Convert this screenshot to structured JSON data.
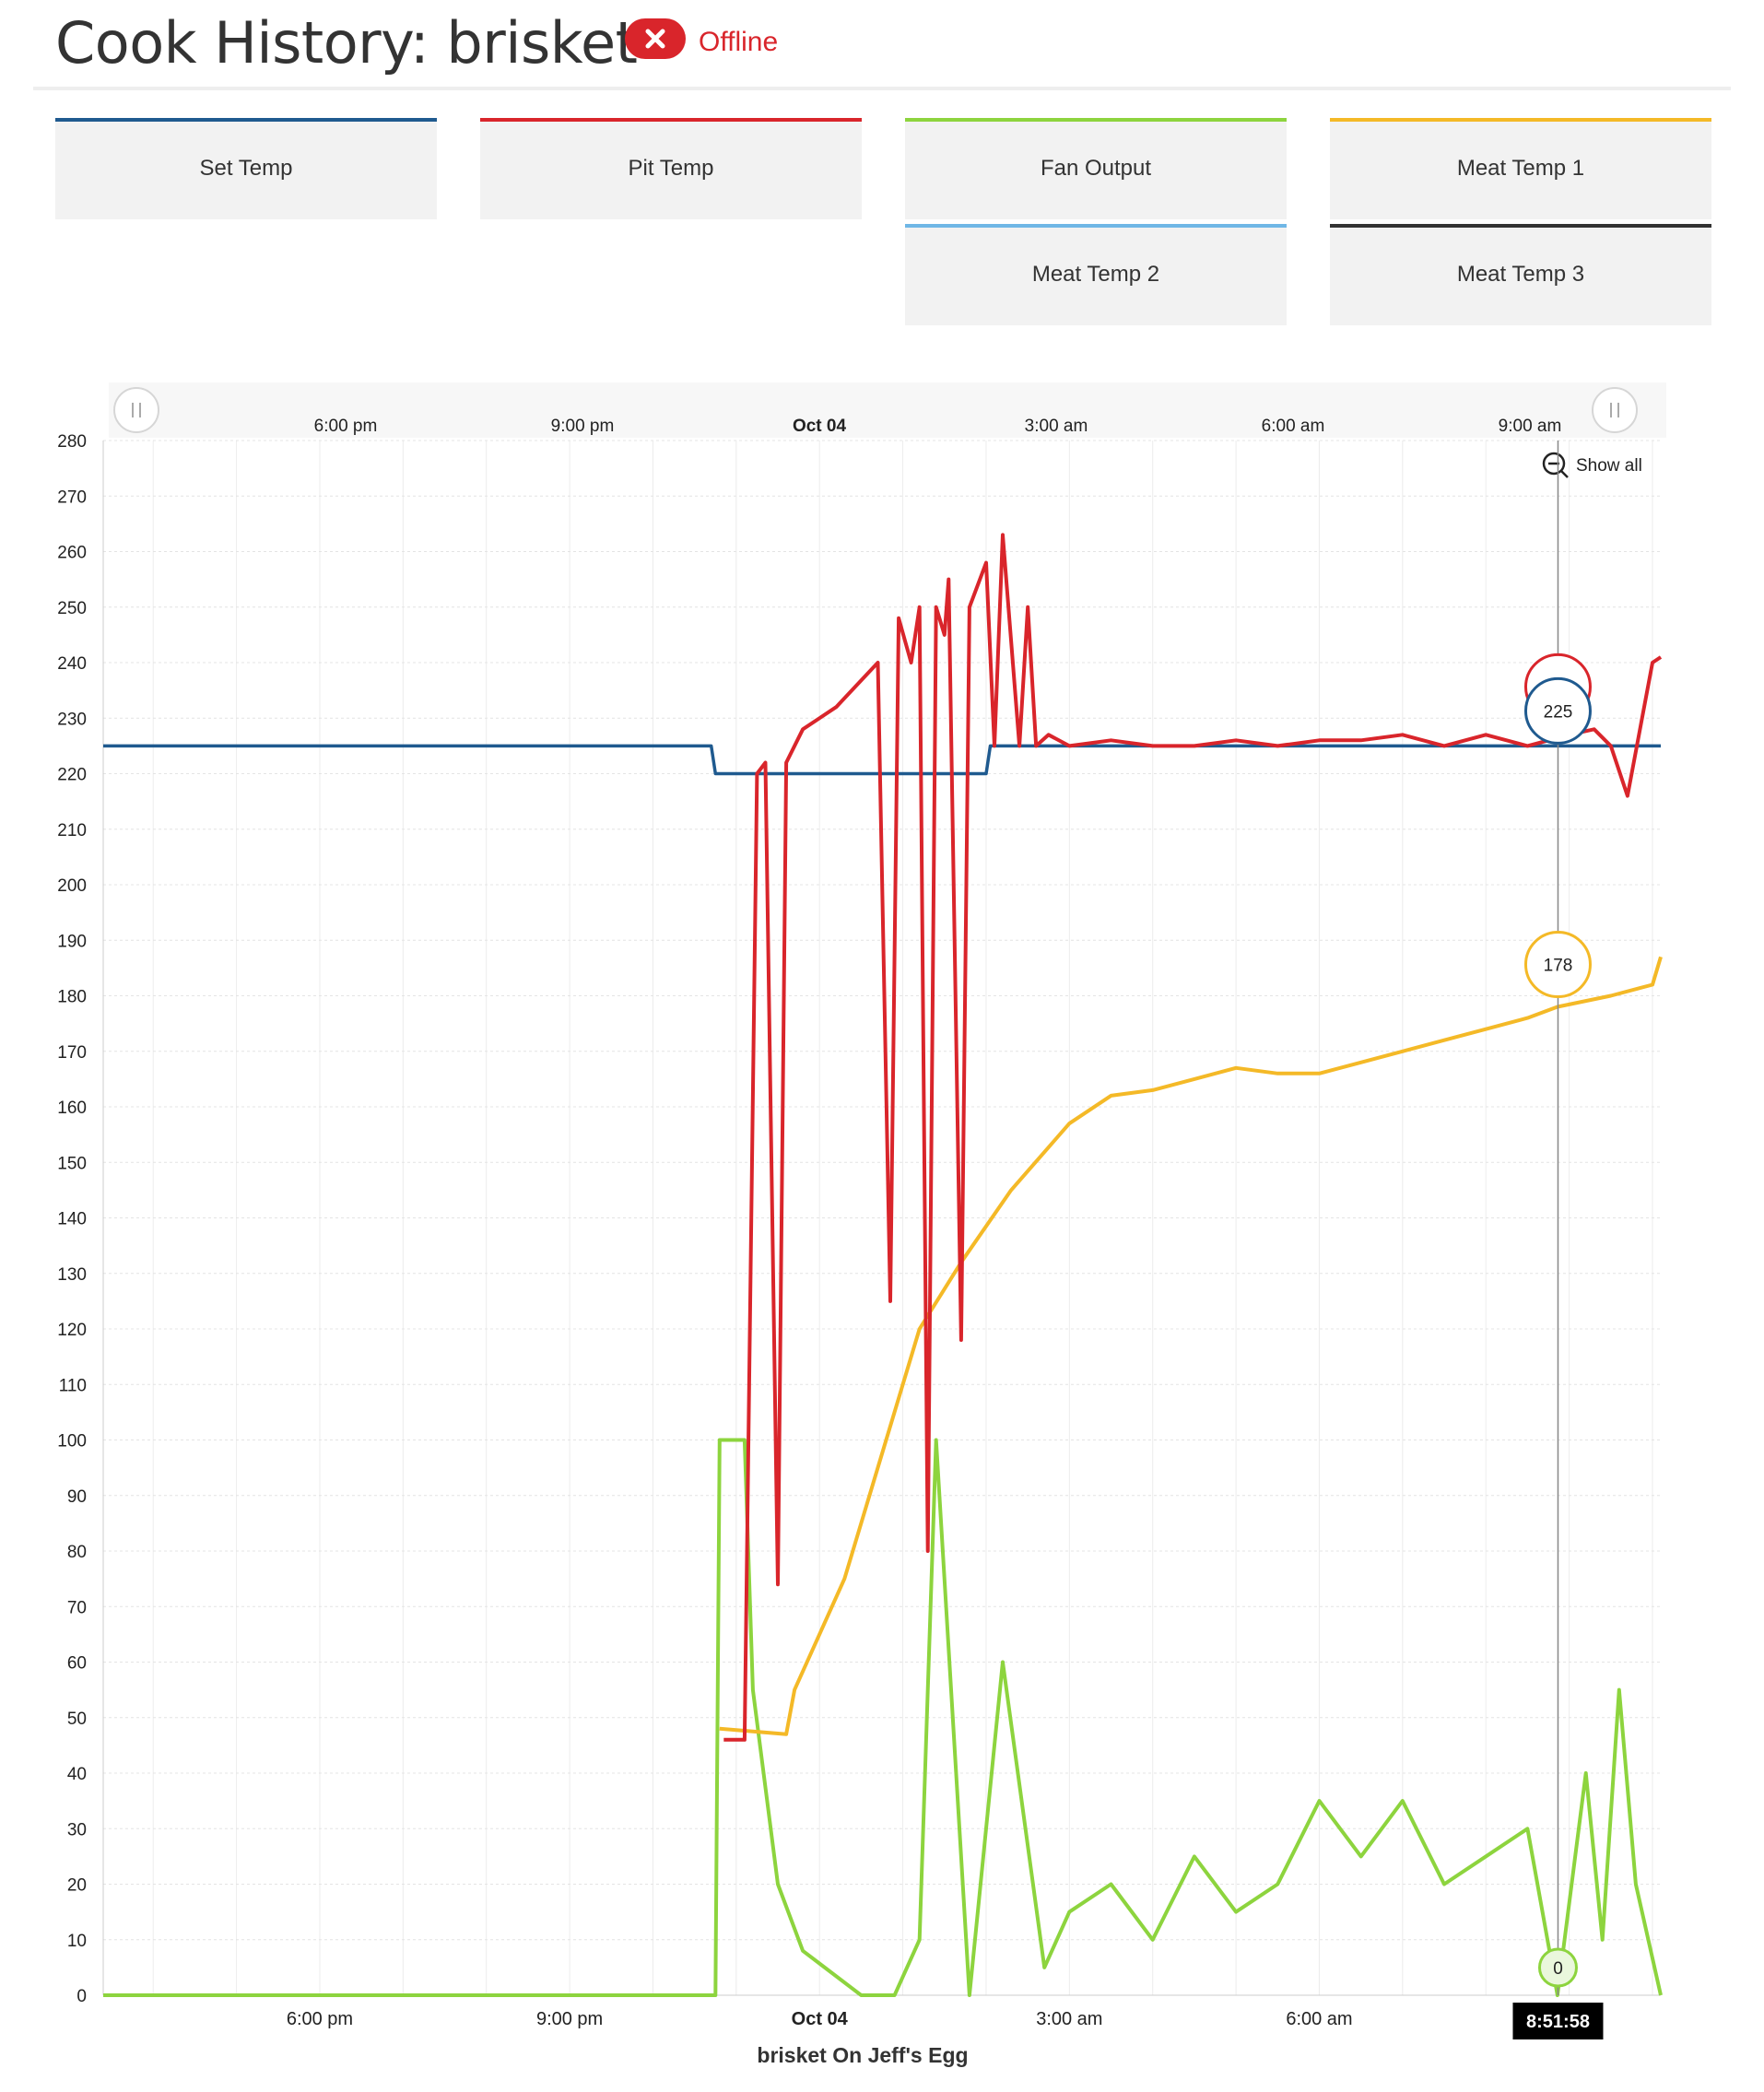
{
  "header": {
    "title": "Cook History: brisket",
    "status_label": "Offline",
    "status_color": "#d9252b"
  },
  "series_buttons": [
    {
      "label": "Set Temp",
      "color": "#1f5a8f"
    },
    {
      "label": "Pit Temp",
      "color": "#d9252b"
    },
    {
      "label": "Fan Output",
      "color": "#8dd43e"
    },
    {
      "label": "Meat Temp 1",
      "color": "#f4b927"
    },
    {
      "label": "Meat Temp 2",
      "color": "#6fb7e6"
    },
    {
      "label": "Meat Temp 3",
      "color": "#333333"
    }
  ],
  "navigator": {
    "tick_labels": [
      "6:00 pm",
      "9:00 pm",
      "Oct 04",
      "3:00 am",
      "6:00 am",
      "9:00 am"
    ],
    "show_all_label": "Show all"
  },
  "tooltip": {
    "time_label": "8:51:58",
    "values": {
      "pit": "227",
      "set": "225",
      "meat1": "178",
      "fan": "0"
    }
  },
  "chart_data": {
    "type": "line",
    "title": "",
    "subtitle": "brisket On Jeff's Egg",
    "xlabel": "",
    "ylabel": "",
    "x_ticks": [
      "6:00 pm",
      "9:00 pm",
      "Oct 04",
      "3:00 am",
      "6:00 am",
      "9:00 am"
    ],
    "x_hours_since_oct03_noon": [
      6,
      9,
      12,
      15,
      18,
      21
    ],
    "xlim": [
      3.4,
      22.1
    ],
    "ylim": [
      0,
      280
    ],
    "y_ticks": [
      0,
      10,
      20,
      30,
      40,
      50,
      60,
      70,
      80,
      90,
      100,
      110,
      120,
      130,
      140,
      150,
      160,
      170,
      180,
      190,
      200,
      210,
      220,
      230,
      240,
      250,
      260,
      270,
      280
    ],
    "grid": true,
    "series": [
      {
        "name": "Set Temp",
        "color": "#1f5a8f",
        "x": [
          3.4,
          10.7,
          10.75,
          14.0,
          14.05,
          22.1
        ],
        "y": [
          225,
          225,
          220,
          220,
          225,
          225
        ]
      },
      {
        "name": "Pit Temp",
        "color": "#d9252b",
        "x": [
          10.85,
          11.1,
          11.25,
          11.35,
          11.5,
          11.6,
          11.8,
          12.2,
          12.7,
          12.85,
          12.95,
          13.1,
          13.2,
          13.3,
          13.4,
          13.5,
          13.55,
          13.7,
          13.8,
          14.0,
          14.1,
          14.2,
          14.4,
          14.5,
          14.6,
          14.75,
          15.0,
          15.5,
          16.0,
          16.5,
          17.0,
          17.5,
          18.0,
          18.5,
          19.0,
          19.5,
          20.0,
          20.5,
          21.0,
          21.3,
          21.5,
          21.7,
          22.0,
          22.1
        ],
        "y": [
          46,
          46,
          220,
          222,
          74,
          222,
          228,
          232,
          240,
          125,
          248,
          240,
          250,
          80,
          250,
          245,
          255,
          118,
          250,
          258,
          225,
          263,
          225,
          250,
          225,
          227,
          225,
          226,
          225,
          225,
          226,
          225,
          226,
          226,
          227,
          225,
          227,
          225,
          227,
          228,
          225,
          216,
          240,
          241
        ]
      },
      {
        "name": "Meat Temp 1",
        "color": "#f4b927",
        "x": [
          10.8,
          11.6,
          11.7,
          12.3,
          12.8,
          13.2,
          13.7,
          14.3,
          15.0,
          15.5,
          16.0,
          16.5,
          17.0,
          17.5,
          18.0,
          18.5,
          19.0,
          19.5,
          20.0,
          20.5,
          20.86,
          21.5,
          22.0,
          22.1
        ],
        "y": [
          48,
          47,
          55,
          75,
          100,
          120,
          132,
          145,
          157,
          162,
          163,
          165,
          167,
          166,
          166,
          168,
          170,
          172,
          174,
          176,
          178,
          180,
          182,
          187
        ]
      },
      {
        "name": "Fan Output",
        "color": "#8dd43e",
        "x": [
          3.4,
          10.75,
          10.8,
          11.1,
          11.2,
          11.5,
          11.8,
          12.5,
          12.9,
          13.2,
          13.4,
          13.8,
          14.2,
          14.7,
          15.0,
          15.5,
          16.0,
          16.5,
          17.0,
          17.5,
          18.0,
          18.5,
          19.0,
          19.5,
          20.0,
          20.5,
          20.86,
          21.2,
          21.4,
          21.6,
          21.8,
          22.1
        ],
        "y": [
          0,
          0,
          100,
          100,
          55,
          20,
          8,
          0,
          0,
          10,
          100,
          0,
          60,
          5,
          15,
          20,
          10,
          25,
          15,
          20,
          35,
          25,
          35,
          20,
          25,
          30,
          0,
          40,
          10,
          55,
          20,
          0
        ]
      }
    ]
  }
}
